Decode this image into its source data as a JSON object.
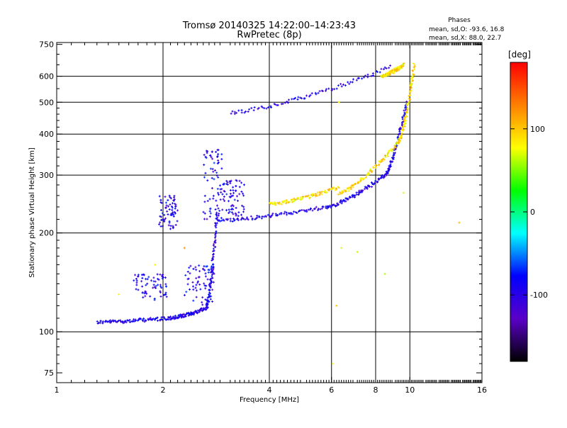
{
  "header": {
    "title_line1": "Tromsø 20140325 14:22:00–14:23:43",
    "title_line2": "RwPretec (8p)"
  },
  "phases_box": {
    "title": "Phases",
    "line1": "mean, sd,O: -93.6, 16.8",
    "line2": "mean, sd,X:  88.0, 22.7"
  },
  "chart_data": {
    "type": "scatter",
    "title": "Tromsø 20140325 14:22:00–14:23:43",
    "subtitle": "RwPretec (8p)",
    "xlabel": "Frequency [MHz]",
    "ylabel": "Stationary phase Virtual Height [km]",
    "x_scale": "log",
    "y_scale": "log",
    "xlim": [
      1,
      16
    ],
    "ylim": [
      70,
      760
    ],
    "x_major_ticks": [
      1,
      2,
      4,
      6,
      8,
      10,
      16
    ],
    "y_major_ticks": [
      75,
      100,
      200,
      300,
      400,
      500,
      600,
      750
    ],
    "x_tick_labels": [
      "1",
      "2",
      "4",
      "6",
      "8",
      "10",
      "16"
    ],
    "y_tick_labels": [
      "75",
      "100",
      "200",
      "300",
      "400",
      "500",
      "600",
      "750"
    ],
    "x_gridlines": [
      2,
      4,
      6,
      8,
      10
    ],
    "y_gridlines": [
      100,
      200,
      300,
      400,
      500,
      600
    ],
    "colorbar": {
      "label": "[deg]",
      "range": [
        -180,
        180
      ],
      "tick_values": [
        100,
        0,
        -100
      ],
      "tick_labels": [
        "100",
        "0",
        "-100"
      ],
      "colors": [
        "#000000",
        "#5a00c8",
        "#0000ff",
        "#00ffff",
        "#00ff00",
        "#ffff00",
        "#ff8000",
        "#ff0000"
      ]
    },
    "series": [
      {
        "phase_deg": -95,
        "segments": [
          {
            "x_range": [
              1.3,
              2.1
            ],
            "y_range": [
              107,
              110
            ]
          },
          {
            "x_range": [
              2.1,
              2.65
            ],
            "y_range": [
              110,
              118
            ]
          },
          {
            "x_range": [
              2.65,
              2.85
            ],
            "y_range": [
              118,
              230
            ]
          },
          {
            "x_range": [
              2.85,
              5.8
            ],
            "y_range": [
              218,
              240
            ]
          },
          {
            "x_range": [
              5.8,
              8.5
            ],
            "y_range": [
              240,
              300
            ]
          },
          {
            "x_range": [
              8.5,
              9.8
            ],
            "y_range": [
              300,
              500
            ]
          },
          {
            "x_range": [
              3.1,
              8.8
            ],
            "y_range": [
              465,
              640
            ]
          }
        ],
        "clusters": [
          {
            "x_range": [
              1.95,
              2.2
            ],
            "y_range": [
              205,
              260
            ]
          },
          {
            "x_range": [
              2.6,
              2.95
            ],
            "y_range": [
              220,
              360
            ]
          },
          {
            "x_range": [
              1.65,
              2.05
            ],
            "y_range": [
              125,
              150
            ]
          },
          {
            "x_range": [
              2.3,
              2.8
            ],
            "y_range": [
              120,
              160
            ]
          },
          {
            "x_range": [
              2.9,
              3.4
            ],
            "y_range": [
              225,
              290
            ]
          }
        ]
      },
      {
        "phase_deg": 90,
        "segments": [
          {
            "x_range": [
              4.0,
              6.3
            ],
            "y_range": [
              245,
              275
            ]
          },
          {
            "x_range": [
              6.3,
              9.3
            ],
            "y_range": [
              265,
              380
            ]
          },
          {
            "x_range": [
              9.3,
              10.3
            ],
            "y_range": [
              380,
              650
            ]
          },
          {
            "x_range": [
              8.3,
              9.6
            ],
            "y_range": [
              600,
              650
            ]
          }
        ],
        "scattered": [
          {
            "x": 1.5,
            "y": 130
          },
          {
            "x": 1.9,
            "y": 160
          },
          {
            "x": 2.3,
            "y": 180
          },
          {
            "x": 6.3,
            "y": 500
          },
          {
            "x": 6.4,
            "y": 180
          },
          {
            "x": 6.2,
            "y": 120
          },
          {
            "x": 7.1,
            "y": 175
          },
          {
            "x": 8.5,
            "y": 150
          },
          {
            "x": 9.6,
            "y": 265
          },
          {
            "x": 13.8,
            "y": 215
          },
          {
            "x": 6.05,
            "y": 80
          }
        ]
      }
    ]
  }
}
